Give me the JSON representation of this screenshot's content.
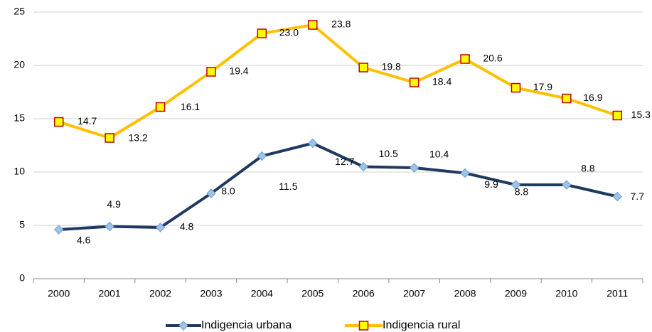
{
  "chart_data": {
    "type": "line",
    "categories": [
      "2000",
      "2001",
      "2002",
      "2003",
      "2004",
      "2005",
      "2006",
      "2007",
      "2008",
      "2009",
      "2010",
      "2011"
    ],
    "series": [
      {
        "name": "Indigencia urbana",
        "color": "#1f3a60",
        "marker": "diamond",
        "marker_color": "#9dc3e6",
        "marker_edge": "#6fa0d0",
        "values": [
          4.6,
          4.9,
          4.8,
          8.0,
          11.5,
          12.7,
          10.5,
          10.4,
          9.9,
          8.8,
          8.8,
          7.7
        ],
        "value_labels": [
          "4.6",
          "4.9",
          "4.8",
          "8.0",
          "11.5",
          "12.7",
          "10.5",
          "10.4",
          "9.9",
          "8.8",
          "8.8",
          "7.7"
        ]
      },
      {
        "name": "Indigencia rural",
        "color": "#ffc000",
        "marker": "square",
        "marker_color": "#ffff00",
        "marker_edge": "#c00000",
        "values": [
          14.7,
          13.2,
          16.1,
          19.4,
          23.0,
          23.8,
          19.8,
          18.4,
          20.6,
          17.9,
          16.9,
          15.3
        ],
        "value_labels": [
          "14.7",
          "13.2",
          "16.1",
          "19.4",
          "23.0",
          "23.8",
          "19.8",
          "18.4",
          "20.6",
          "17.9",
          "16.9",
          "15.3"
        ]
      }
    ],
    "ylim": [
      0,
      25
    ],
    "yticks": [
      0,
      5,
      10,
      15,
      20,
      25
    ],
    "grid": true,
    "legend": "bottom"
  }
}
